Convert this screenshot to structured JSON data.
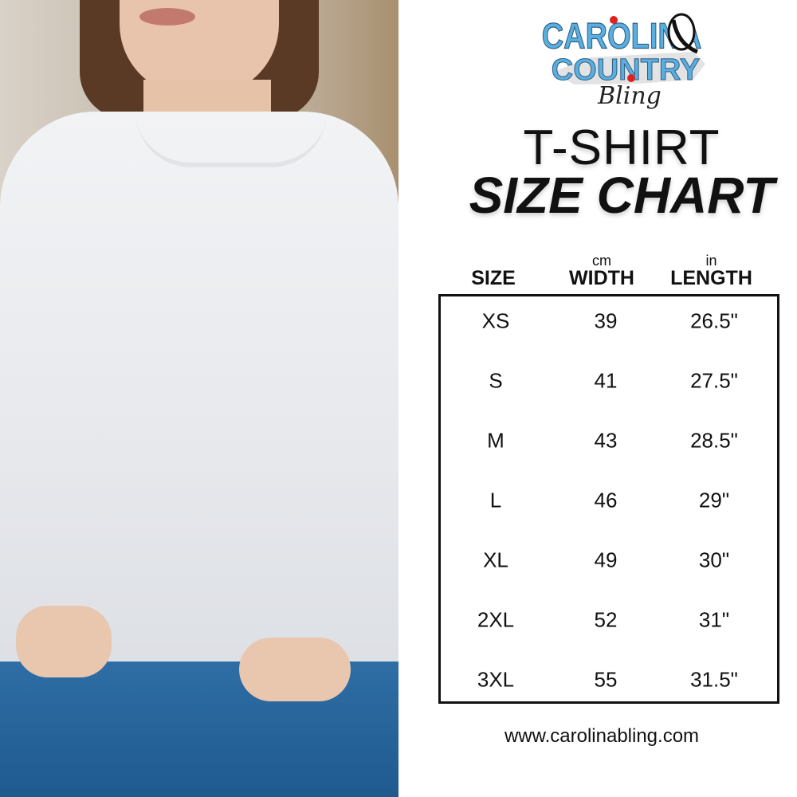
{
  "logo": {
    "text": "CAROLINA COUNTRY Bling",
    "line1": "CAROLINA",
    "line2": "COUNTRY",
    "line3": "Bling"
  },
  "title": {
    "line1": "T-SHIRT",
    "line2": "SIZE CHART"
  },
  "headers": [
    {
      "unit": "",
      "label": "SIZE"
    },
    {
      "unit": "cm",
      "label": "WIDTH"
    },
    {
      "unit": "in",
      "label": "LENGTH"
    }
  ],
  "rows": [
    {
      "size": "XS",
      "width": "39",
      "length": "26.5\""
    },
    {
      "size": "S",
      "width": "41",
      "length": "27.5\""
    },
    {
      "size": "M",
      "width": "43",
      "length": "28.5\""
    },
    {
      "size": "L",
      "width": "46",
      "length": "29\""
    },
    {
      "size": "XL",
      "width": "49",
      "length": "30\""
    },
    {
      "size": "2XL",
      "width": "52",
      "length": "31\""
    },
    {
      "size": "3XL",
      "width": "55",
      "length": "31.5\""
    }
  ],
  "url": "www.carolinabling.com",
  "colors": {
    "logo_blue": "#5aaee0",
    "text": "#111111",
    "jeans": "#2a659c"
  }
}
